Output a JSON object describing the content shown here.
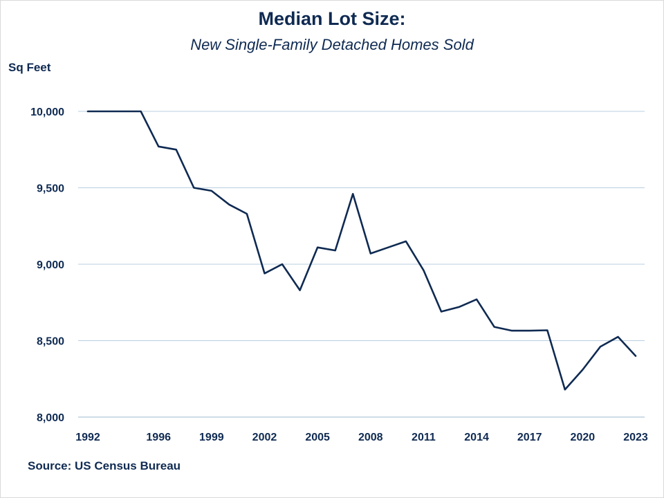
{
  "chart_data": {
    "type": "line",
    "title": "Median Lot Size:",
    "subtitle": "New Single-Family Detached Homes Sold",
    "ylabel": "Sq Feet",
    "source": "Source: US Census Bureau",
    "ylim": [
      8000,
      10000
    ],
    "xlim": [
      1992,
      2023
    ],
    "yticks": [
      10000,
      9500,
      9000,
      8500,
      8000
    ],
    "ytick_labels": [
      "10,000",
      "9,500",
      "9,000",
      "8,500",
      "8,000"
    ],
    "xtick_labels": [
      "1992",
      "1996",
      "1999",
      "2002",
      "2005",
      "2008",
      "2011",
      "2014",
      "2017",
      "2020",
      "2023"
    ],
    "grid": true,
    "line_color": "#0f2a52",
    "grid_color": "#b8cfe0",
    "series": [
      {
        "x": [
          1992,
          1993,
          1994,
          1995,
          1996,
          1997,
          1998,
          1999,
          2000,
          2001,
          2002,
          2003,
          2004,
          2005,
          2006,
          2007,
          2008,
          2009,
          2010,
          2011,
          2012,
          2013,
          2014,
          2015,
          2016,
          2017,
          2018,
          2019,
          2020,
          2021,
          2022,
          2023
        ],
        "values": [
          10000,
          10000,
          10000,
          10000,
          9770,
          9750,
          9500,
          9480,
          9390,
          9330,
          8940,
          9000,
          8830,
          9110,
          9090,
          9460,
          9070,
          9110,
          9150,
          8960,
          8690,
          8720,
          8770,
          8590,
          8565,
          8565,
          8568,
          8180,
          8310,
          8460,
          8525,
          8400
        ]
      }
    ]
  }
}
